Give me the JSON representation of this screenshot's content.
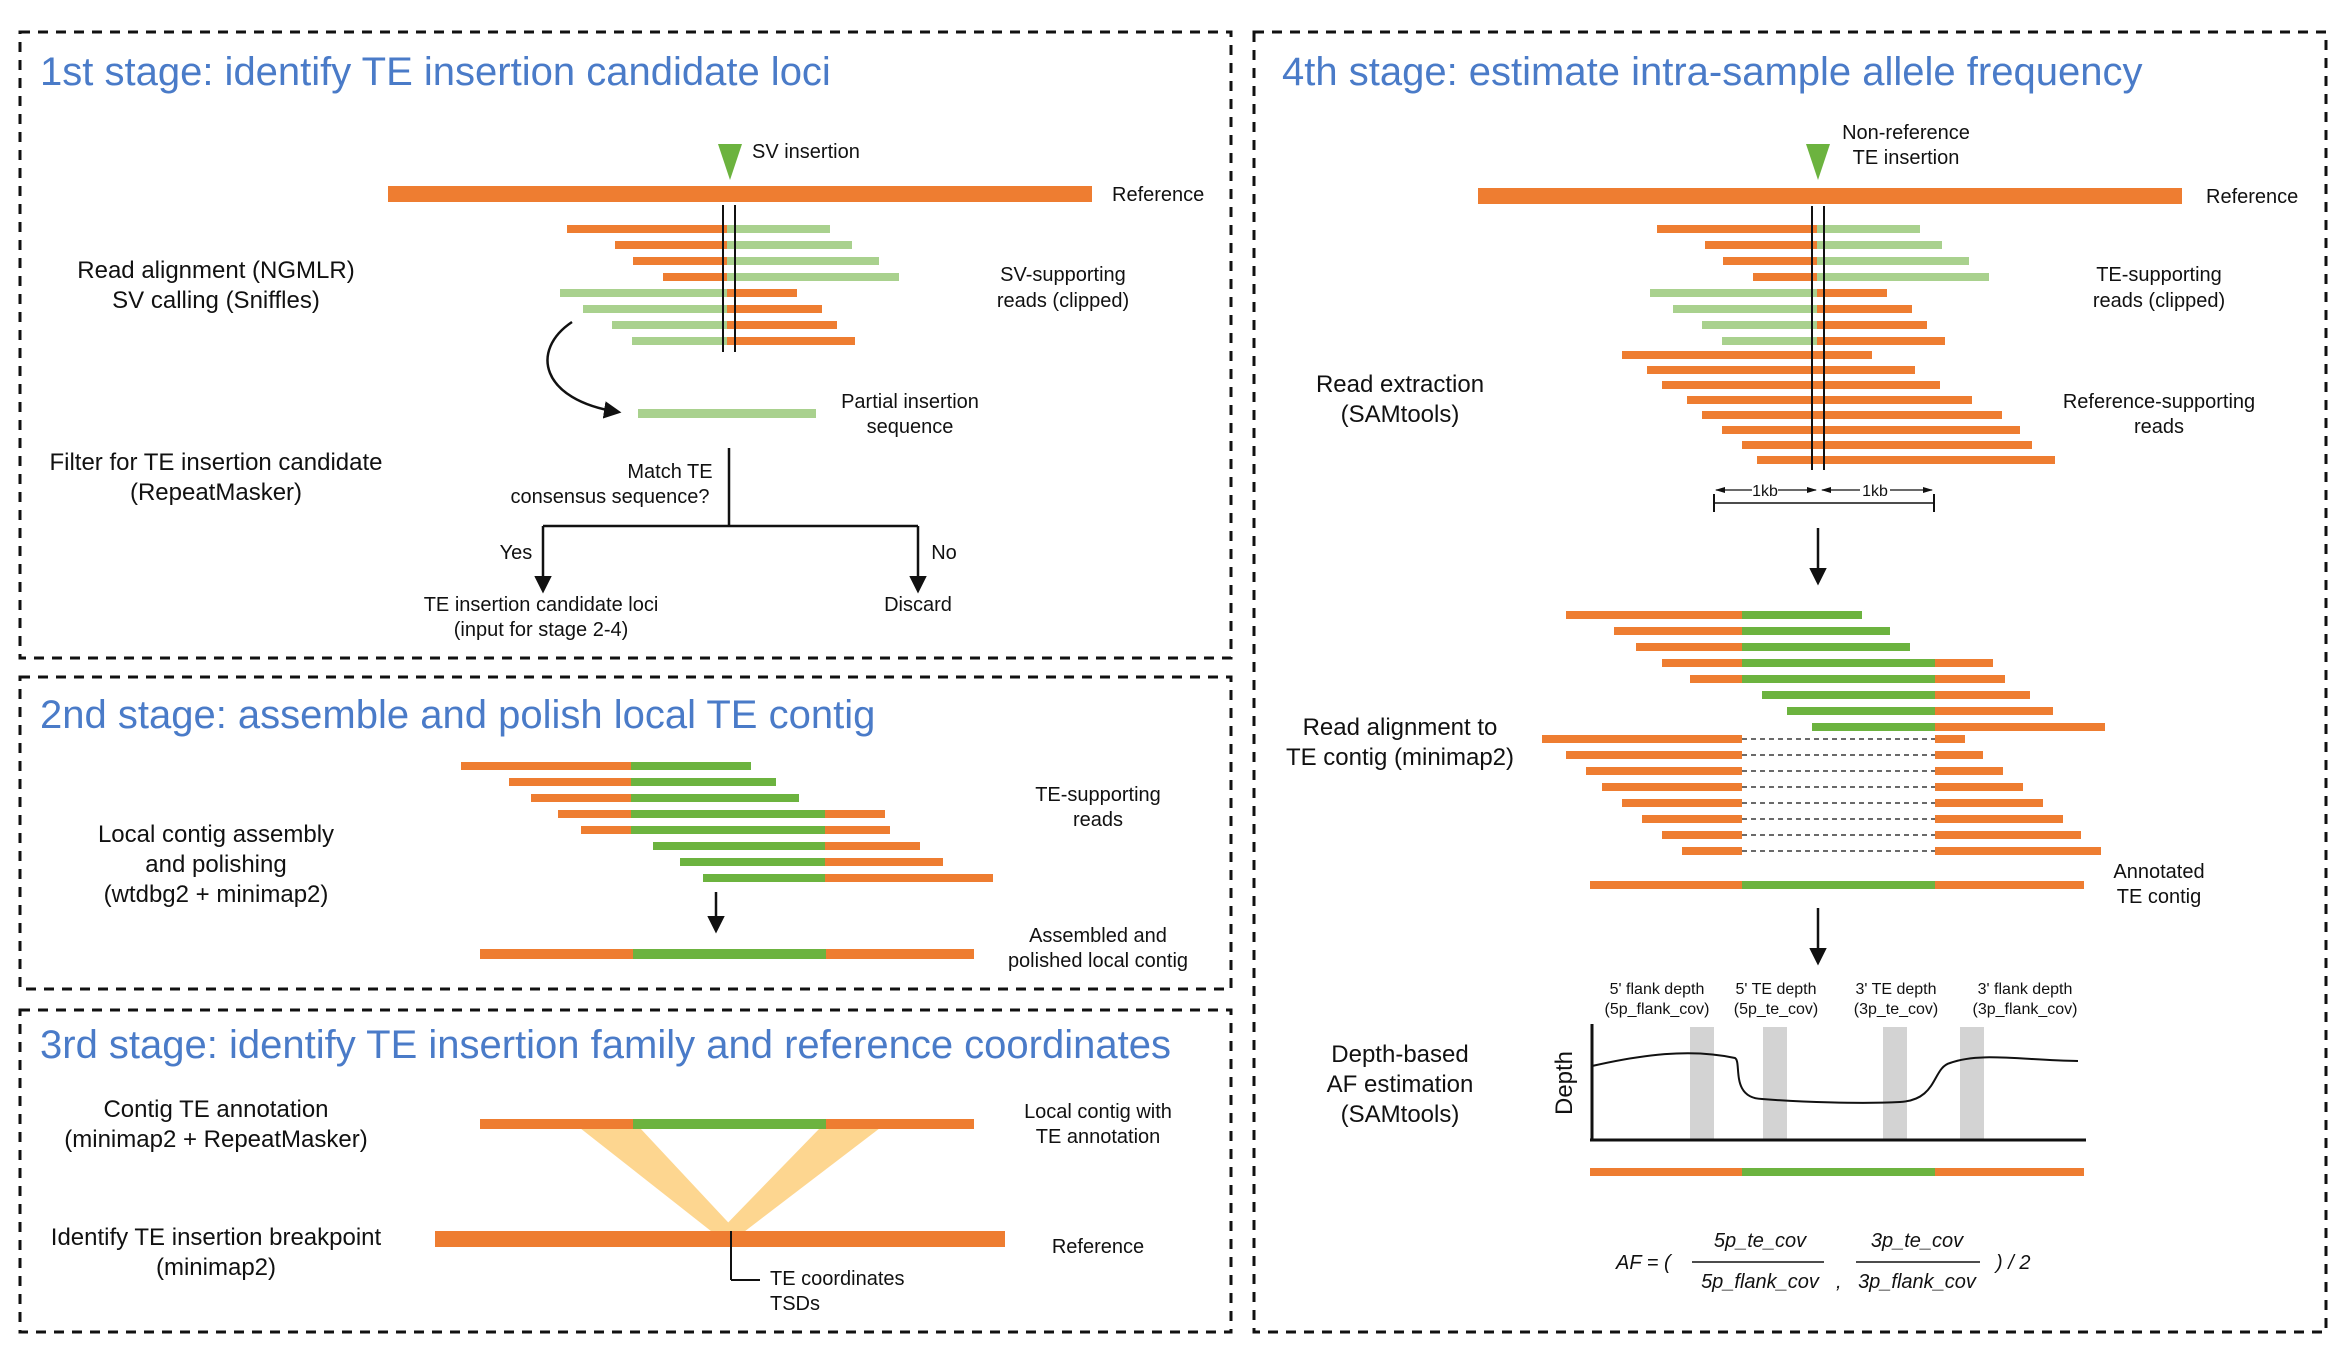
{
  "colors": {
    "flank": "#ee7d31",
    "te": "#6cb33f",
    "light_green": "#a9d18e",
    "band": "#fdd690",
    "title": "#4a7bc8",
    "shade": "#d3d3d3",
    "text": "#111111"
  },
  "icons": {
    "triangle_marker": "green-down-triangle",
    "arrow": "black-arrow"
  },
  "stage1": {
    "title": "1st stage: identify TE insertion candidate loci",
    "sv_insertion": "SV insertion",
    "reference": "Reference",
    "method1": "Read alignment (NGMLR)",
    "method2": "SV calling (Sniffles)",
    "sv_reads1": "SV-supporting",
    "sv_reads2": "reads (clipped)",
    "partial1": "Partial insertion",
    "partial2": "sequence",
    "filter1": "Filter for TE insertion candidate",
    "filter2": "(RepeatMasker)",
    "match1": "Match TE",
    "match2": "consensus sequence?",
    "yes": "Yes",
    "no": "No",
    "cand1": "TE insertion candidate loci",
    "cand2": "(input for stage 2-4)",
    "discard": "Discard"
  },
  "stage2": {
    "title": "2nd stage: assemble and polish local TE contig",
    "method1": "Local contig assembly",
    "method2": "and polishing",
    "method3": "(wtdbg2 + minimap2)",
    "reads1": "TE-supporting",
    "reads2": "reads",
    "contig1": "Assembled and",
    "contig2": "polished local contig"
  },
  "stage3": {
    "title": "3rd stage: identify TE insertion family and reference coordinates",
    "method1": "Contig TE annotation",
    "method2": "(minimap2 + RepeatMasker)",
    "method3": "Identify TE insertion breakpoint",
    "method4": "(minimap2)",
    "contig1": "Local contig with",
    "contig2": "TE annotation",
    "reference": "Reference",
    "coord1": "TE coordinates",
    "coord2": "TSDs"
  },
  "stage4": {
    "title": "4th stage: estimate intra-sample allele frequency",
    "nonref1": "Non-reference",
    "nonref2": "TE insertion",
    "reference": "Reference",
    "te_reads1": "TE-supporting",
    "te_reads2": "reads (clipped)",
    "ref_reads1": "Reference-supporting",
    "ref_reads2": "reads",
    "extract1": "Read extraction",
    "extract2": "(SAMtools)",
    "kb_left": "1kb",
    "kb_right": "1kb",
    "align1": "Read alignment to",
    "align2": "TE contig (minimap2)",
    "annotated1": "Annotated",
    "annotated2": "TE contig",
    "depth1": "Depth-based",
    "depth2": "AF estimation",
    "depth3": "(SAMtools)",
    "ylabel": "Depth",
    "f5a": "5' flank depth",
    "f5b": "(5p_flank_cov)",
    "t5a": "5' TE depth",
    "t5b": "(5p_te_cov)",
    "t3a": "3' TE depth",
    "t3b": "(3p_te_cov)",
    "f3a": "3' flank depth",
    "f3b": "(3p_flank_cov)",
    "af": "AF = (",
    "num1": "5p_te_cov",
    "den1": "5p_flank_cov",
    "comma": ",",
    "num2": "3p_te_cov",
    "den2": "3p_flank_cov",
    "tail": ") / 2"
  }
}
